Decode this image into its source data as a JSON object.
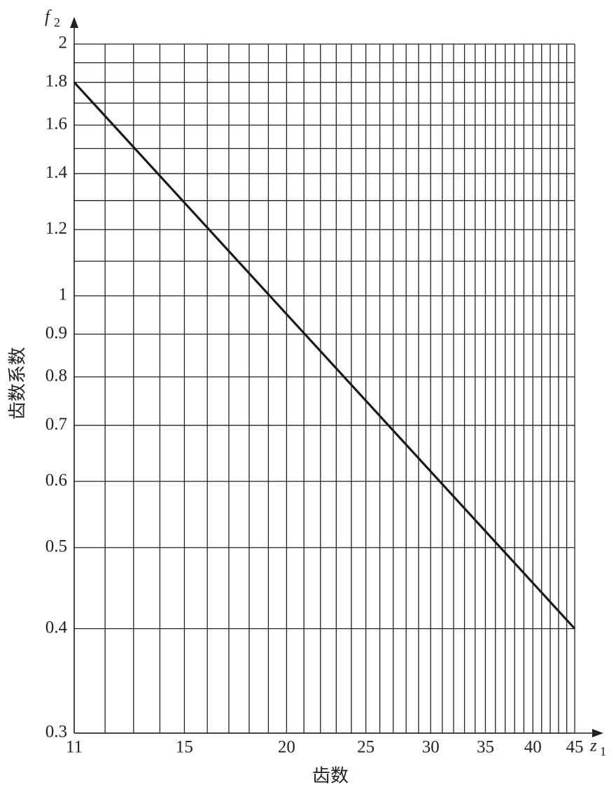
{
  "chart_data": {
    "type": "line",
    "log_x": true,
    "log_y": true,
    "grid": true,
    "x_title": "齿数",
    "y_title": "齿数系数",
    "y_symbol": {
      "base": "f",
      "sub": "2"
    },
    "x_symbol": {
      "base": "z",
      "sub": "1"
    },
    "x": [
      11,
      45
    ],
    "series": [
      {
        "color": "#1a1a1a",
        "values": [
          1.8,
          0.4
        ]
      }
    ],
    "xlim": [
      11,
      45
    ],
    "ylim": [
      0.3,
      2
    ],
    "xticks": [
      11,
      15,
      20,
      25,
      30,
      35,
      40,
      45
    ],
    "yticks": [
      0.3,
      0.4,
      0.5,
      0.6,
      0.7,
      0.8,
      0.9,
      1,
      1.2,
      1.4,
      1.6,
      1.8,
      2
    ],
    "xgrid_minor": [
      12,
      13,
      14,
      16,
      17,
      18,
      19,
      21,
      22,
      23,
      24,
      26,
      27,
      28,
      29,
      31,
      32,
      33,
      34,
      36,
      37,
      38,
      39,
      41,
      42,
      43,
      44
    ],
    "ygrid_minor": [
      1.1,
      1.3,
      1.5,
      1.7,
      1.9
    ]
  }
}
